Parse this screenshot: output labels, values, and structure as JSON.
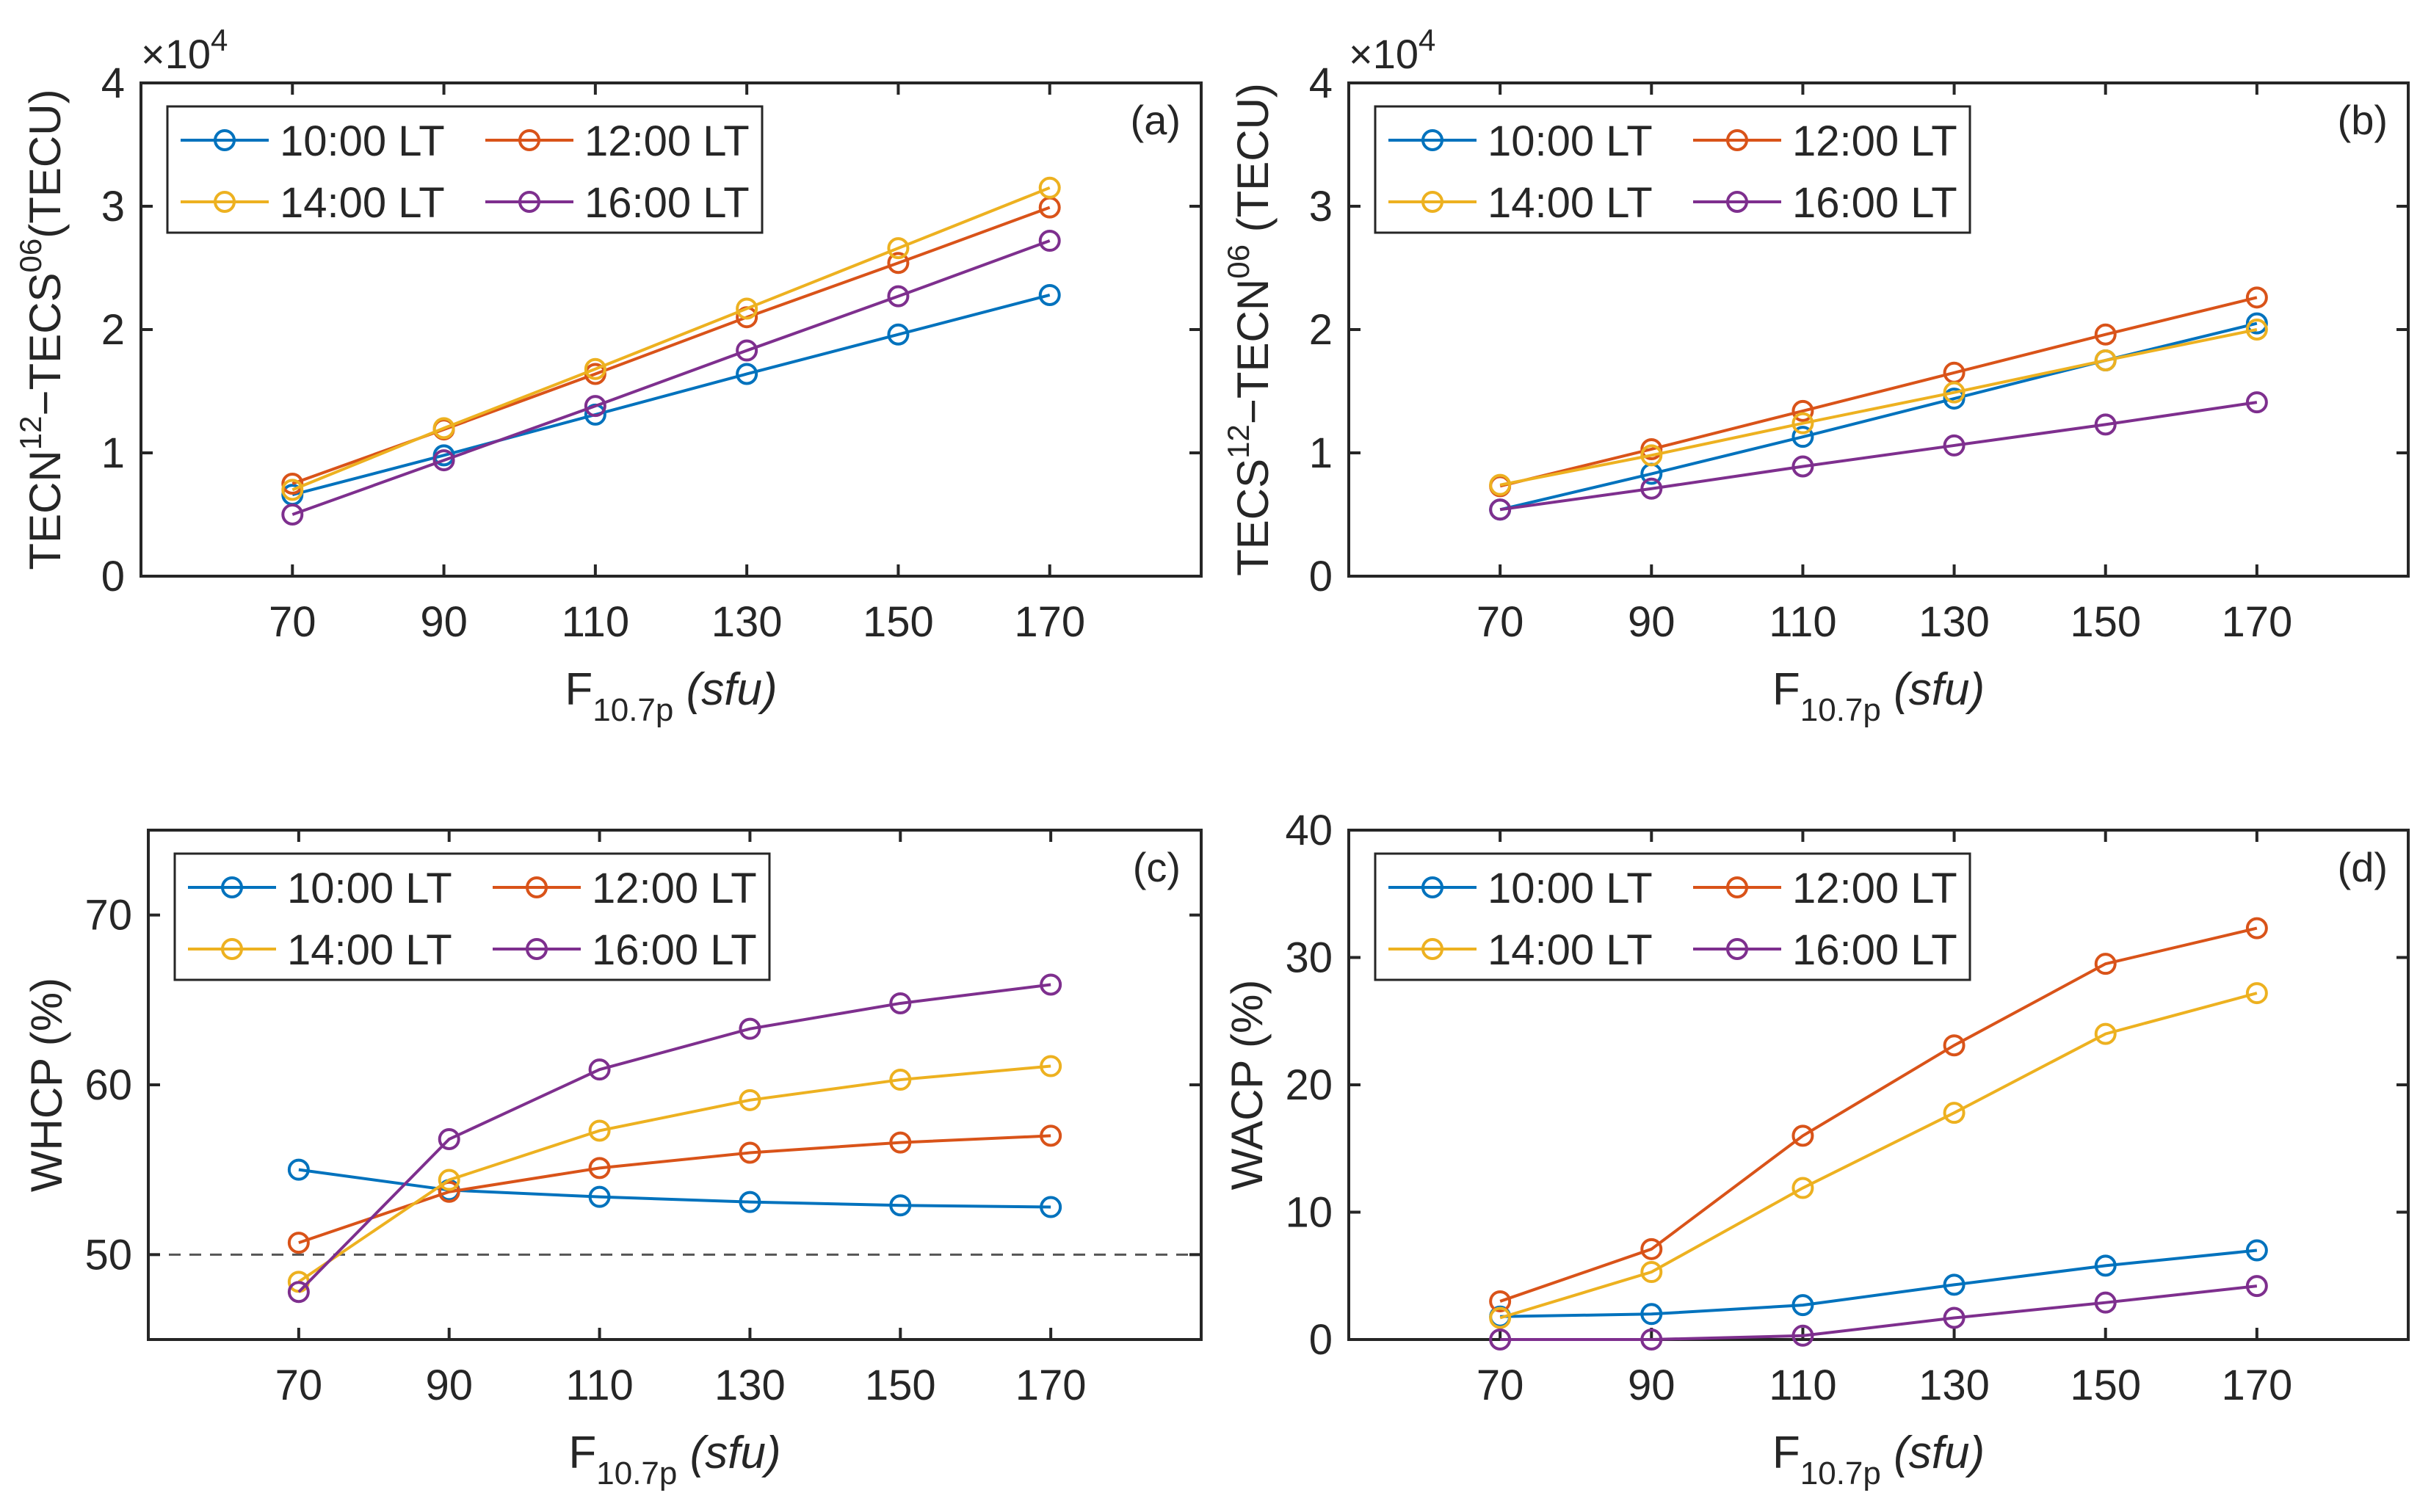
{
  "colors": {
    "blue": "#0072BD",
    "orange": "#D95319",
    "yellow": "#EDB120",
    "purple": "#7E2F8E",
    "axis": "#262626",
    "reference": "#555555"
  },
  "chart_data": [
    {
      "type": "line",
      "panel_label": "(a)",
      "exponent_label": "×10",
      "exponent_power": "4",
      "ylabel": {
        "base1": "TECN",
        "sup1": "12",
        "mid": "−TECS",
        "sup2": "06",
        "tail": "(TECU)"
      },
      "xlabel": {
        "main": "F",
        "sub": "10.7p",
        "unit": "(sfu)"
      },
      "xlim": [
        50,
        190
      ],
      "ylim": [
        0,
        40000
      ],
      "x_ticks": [
        70,
        90,
        110,
        130,
        150,
        170
      ],
      "x_tick_labels": [
        "70",
        "90",
        "110",
        "130",
        "150",
        "170"
      ],
      "y_ticks": [
        0,
        10000,
        20000,
        30000,
        40000
      ],
      "y_tick_labels": [
        "0",
        "1",
        "2",
        "3",
        "4"
      ],
      "x": [
        70,
        90,
        110,
        130,
        150,
        170
      ],
      "series": [
        {
          "name": "10:00 LT",
          "color": "#0072BD",
          "values": [
            6600,
            9800,
            13100,
            16400,
            19600,
            22800
          ]
        },
        {
          "name": "12:00 LT",
          "color": "#D95319",
          "values": [
            7500,
            11900,
            16400,
            21000,
            25400,
            29900
          ]
        },
        {
          "name": "14:00 LT",
          "color": "#EDB120",
          "values": [
            7000,
            12000,
            16800,
            21700,
            26600,
            31500
          ]
        },
        {
          "name": "16:00 LT",
          "color": "#7E2F8E",
          "values": [
            5000,
            9400,
            13800,
            18300,
            22700,
            27200
          ]
        }
      ],
      "legend_position": "top-left"
    },
    {
      "type": "line",
      "panel_label": "(b)",
      "exponent_label": "×10",
      "exponent_power": "4",
      "ylabel": {
        "base1": "TECS",
        "sup1": "12",
        "mid": "−TECN",
        "sup2": "06",
        "tail": " (TECU)"
      },
      "xlabel": {
        "main": "F",
        "sub": "10.7p",
        "unit": "(sfu)"
      },
      "xlim": [
        50,
        190
      ],
      "ylim": [
        0,
        40000
      ],
      "x_ticks": [
        70,
        90,
        110,
        130,
        150,
        170
      ],
      "x_tick_labels": [
        "70",
        "90",
        "110",
        "130",
        "150",
        "170"
      ],
      "y_ticks": [
        0,
        10000,
        20000,
        30000,
        40000
      ],
      "y_tick_labels": [
        "0",
        "1",
        "2",
        "3",
        "4"
      ],
      "x": [
        70,
        90,
        110,
        130,
        150,
        170
      ],
      "series": [
        {
          "name": "10:00 LT",
          "color": "#0072BD",
          "values": [
            5400,
            8300,
            11300,
            14400,
            17500,
            20500
          ]
        },
        {
          "name": "12:00 LT",
          "color": "#D95319",
          "values": [
            7300,
            10300,
            13400,
            16500,
            19600,
            22600
          ]
        },
        {
          "name": "14:00 LT",
          "color": "#EDB120",
          "values": [
            7400,
            9800,
            12400,
            14900,
            17500,
            20000
          ]
        },
        {
          "name": "16:00 LT",
          "color": "#7E2F8E",
          "values": [
            5400,
            7100,
            8900,
            10600,
            12300,
            14100
          ]
        }
      ],
      "legend_position": "top-left"
    },
    {
      "type": "line",
      "panel_label": "(c)",
      "ylabel": {
        "text": "WHCP (%)"
      },
      "xlabel": {
        "main": "F",
        "sub": "10.7p",
        "unit": "(sfu)"
      },
      "xlim": [
        50,
        190
      ],
      "ylim": [
        45,
        75
      ],
      "x_ticks": [
        70,
        90,
        110,
        130,
        150,
        170
      ],
      "x_tick_labels": [
        "70",
        "90",
        "110",
        "130",
        "150",
        "170"
      ],
      "y_ticks": [
        50,
        60,
        70
      ],
      "y_tick_labels": [
        "50",
        "60",
        "70"
      ],
      "reference_line": 50,
      "x": [
        70,
        90,
        110,
        130,
        150,
        170
      ],
      "series": [
        {
          "name": "10:00 LT",
          "color": "#0072BD",
          "values": [
            55.0,
            53.8,
            53.4,
            53.1,
            52.9,
            52.8
          ]
        },
        {
          "name": "12:00 LT",
          "color": "#D95319",
          "values": [
            50.7,
            53.7,
            55.1,
            56.0,
            56.6,
            57.0
          ]
        },
        {
          "name": "14:00 LT",
          "color": "#EDB120",
          "values": [
            48.4,
            54.4,
            57.3,
            59.1,
            60.3,
            61.1
          ]
        },
        {
          "name": "16:00 LT",
          "color": "#7E2F8E",
          "values": [
            47.8,
            56.8,
            60.9,
            63.3,
            64.8,
            65.9
          ]
        }
      ],
      "legend_position": "top-left"
    },
    {
      "type": "line",
      "panel_label": "(d)",
      "ylabel": {
        "text": "WACP (%)"
      },
      "xlabel": {
        "main": "F",
        "sub": "10.7p",
        "unit": "(sfu)"
      },
      "xlim": [
        50,
        190
      ],
      "ylim": [
        0,
        40
      ],
      "x_ticks": [
        70,
        90,
        110,
        130,
        150,
        170
      ],
      "x_tick_labels": [
        "70",
        "90",
        "110",
        "130",
        "150",
        "170"
      ],
      "y_ticks": [
        0,
        10,
        20,
        30,
        40
      ],
      "y_tick_labels": [
        "0",
        "10",
        "20",
        "30",
        "40"
      ],
      "x": [
        70,
        90,
        110,
        130,
        150,
        170
      ],
      "series": [
        {
          "name": "10:00 LT",
          "color": "#0072BD",
          "values": [
            1.8,
            2.0,
            2.7,
            4.3,
            5.8,
            7.0
          ]
        },
        {
          "name": "12:00 LT",
          "color": "#D95319",
          "values": [
            3.0,
            7.1,
            16.0,
            23.1,
            29.5,
            32.3
          ]
        },
        {
          "name": "14:00 LT",
          "color": "#EDB120",
          "values": [
            1.7,
            5.3,
            11.9,
            17.8,
            24.0,
            27.2
          ]
        },
        {
          "name": "16:00 LT",
          "color": "#7E2F8E",
          "values": [
            0.0,
            0.0,
            0.3,
            1.7,
            2.9,
            4.2
          ]
        }
      ],
      "legend_position": "top-left"
    }
  ]
}
